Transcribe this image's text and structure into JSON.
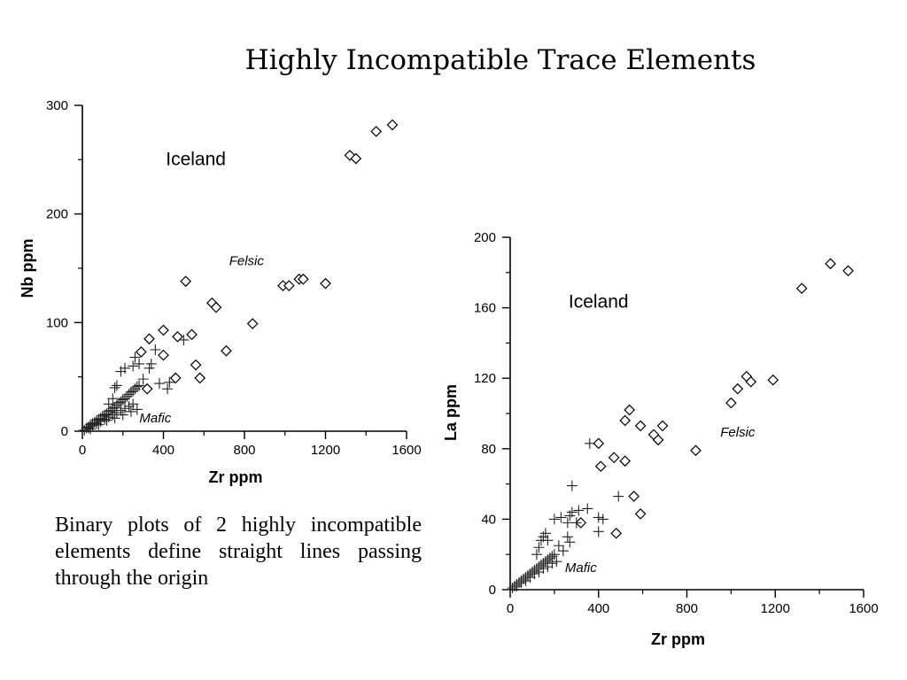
{
  "slide": {
    "title": "Highly Incompatible Trace Elements",
    "caption": "Binary plots of 2 highly incompatible elements define straight lines passing through the origin"
  },
  "chart_data": [
    {
      "type": "scatter",
      "xlabel": "Zr ppm",
      "ylabel": "Nb ppm",
      "xlim": [
        0,
        1600
      ],
      "ylim": [
        0,
        300
      ],
      "xticks": [
        0,
        400,
        800,
        1200,
        1600
      ],
      "yticks": [
        0,
        100,
        200,
        300
      ],
      "annotations": [
        {
          "text": "Iceland",
          "at": [
            560,
            245
          ],
          "style": "region"
        },
        {
          "text": "Felsic",
          "at": [
            810,
            153
          ],
          "style": "group-label"
        },
        {
          "text": "Mafic",
          "at": [
            360,
            8
          ],
          "style": "group-label"
        }
      ],
      "series": [
        {
          "marker": "diamond",
          "points": [
            [
              1320,
              254
            ],
            [
              1350,
              251
            ],
            [
              1450,
              276
            ],
            [
              1530,
              282
            ],
            [
              510,
              138
            ],
            [
              640,
              118
            ],
            [
              660,
              114
            ],
            [
              990,
              134
            ],
            [
              1020,
              134
            ],
            [
              1070,
              140
            ],
            [
              1090,
              140
            ],
            [
              1200,
              136
            ],
            [
              840,
              99
            ],
            [
              290,
              73
            ],
            [
              330,
              85
            ],
            [
              400,
              93
            ],
            [
              470,
              87
            ],
            [
              540,
              89
            ],
            [
              400,
              70
            ],
            [
              560,
              61
            ],
            [
              710,
              74
            ],
            [
              460,
              49
            ],
            [
              580,
              49
            ],
            [
              320,
              39
            ]
          ]
        },
        {
          "marker": "plus",
          "points": [
            [
              10,
              1
            ],
            [
              20,
              3
            ],
            [
              30,
              4
            ],
            [
              40,
              6
            ],
            [
              50,
              7
            ],
            [
              60,
              8
            ],
            [
              70,
              10
            ],
            [
              80,
              11
            ],
            [
              90,
              12
            ],
            [
              100,
              14
            ],
            [
              110,
              15
            ],
            [
              120,
              16
            ],
            [
              130,
              18
            ],
            [
              140,
              19
            ],
            [
              150,
              21
            ],
            [
              160,
              22
            ],
            [
              170,
              24
            ],
            [
              180,
              26
            ],
            [
              190,
              27
            ],
            [
              200,
              29
            ],
            [
              210,
              30
            ],
            [
              220,
              32
            ],
            [
              230,
              34
            ],
            [
              240,
              36
            ],
            [
              250,
              37
            ],
            [
              260,
              39
            ],
            [
              270,
              41
            ],
            [
              280,
              42
            ],
            [
              30,
              3
            ],
            [
              50,
              5
            ],
            [
              70,
              7
            ],
            [
              90,
              9
            ],
            [
              110,
              11
            ],
            [
              130,
              13
            ],
            [
              150,
              15
            ],
            [
              170,
              17
            ],
            [
              190,
              19
            ],
            [
              210,
              21
            ],
            [
              230,
              23
            ],
            [
              250,
              25
            ],
            [
              40,
              2
            ],
            [
              80,
              6
            ],
            [
              120,
              10
            ],
            [
              160,
              12
            ],
            [
              200,
              15
            ],
            [
              240,
              18
            ],
            [
              270,
              20
            ],
            [
              130,
              25
            ],
            [
              150,
              30
            ],
            [
              160,
              40
            ],
            [
              170,
              42
            ],
            [
              190,
              55
            ],
            [
              210,
              58
            ],
            [
              250,
              60
            ],
            [
              280,
              62
            ],
            [
              300,
              48
            ],
            [
              330,
              58
            ],
            [
              340,
              62
            ],
            [
              360,
              75
            ],
            [
              380,
              44
            ],
            [
              420,
              39
            ],
            [
              430,
              45
            ],
            [
              500,
              84
            ],
            [
              260,
              68
            ]
          ]
        }
      ]
    },
    {
      "type": "scatter",
      "xlabel": "Zr ppm",
      "ylabel": "La ppm",
      "xlim": [
        0,
        1600
      ],
      "ylim": [
        0,
        200
      ],
      "xticks": [
        0,
        400,
        800,
        1200,
        1600
      ],
      "yticks": [
        0,
        40,
        80,
        120,
        160,
        200
      ],
      "annotations": [
        {
          "text": "Iceland",
          "at": [
            400,
            160
          ],
          "style": "region"
        },
        {
          "text": "Felsic",
          "at": [
            1030,
            87
          ],
          "style": "group-label"
        },
        {
          "text": "Mafic",
          "at": [
            320,
            10
          ],
          "style": "group-label"
        }
      ],
      "series": [
        {
          "marker": "diamond",
          "points": [
            [
              1450,
              185
            ],
            [
              1530,
              181
            ],
            [
              1320,
              171
            ],
            [
              1070,
              121
            ],
            [
              1090,
              118
            ],
            [
              1190,
              119
            ],
            [
              1030,
              114
            ],
            [
              1000,
              106
            ],
            [
              840,
              79
            ],
            [
              540,
              102
            ],
            [
              520,
              96
            ],
            [
              590,
              93
            ],
            [
              690,
              93
            ],
            [
              650,
              88
            ],
            [
              670,
              85
            ],
            [
              400,
              83
            ],
            [
              410,
              70
            ],
            [
              470,
              75
            ],
            [
              520,
              73
            ],
            [
              560,
              53
            ],
            [
              590,
              43
            ],
            [
              480,
              32
            ],
            [
              320,
              38
            ]
          ]
        },
        {
          "marker": "plus",
          "points": [
            [
              10,
              1
            ],
            [
              20,
              2
            ],
            [
              30,
              3
            ],
            [
              40,
              4
            ],
            [
              50,
              5
            ],
            [
              60,
              6
            ],
            [
              70,
              7
            ],
            [
              80,
              8
            ],
            [
              90,
              9
            ],
            [
              100,
              10
            ],
            [
              110,
              11
            ],
            [
              120,
              12
            ],
            [
              130,
              13
            ],
            [
              140,
              14
            ],
            [
              150,
              15
            ],
            [
              160,
              16
            ],
            [
              170,
              17
            ],
            [
              180,
              18
            ],
            [
              190,
              19
            ],
            [
              200,
              20
            ],
            [
              30,
              2
            ],
            [
              50,
              4
            ],
            [
              70,
              5
            ],
            [
              90,
              7
            ],
            [
              110,
              9
            ],
            [
              130,
              10
            ],
            [
              150,
              12
            ],
            [
              170,
              13
            ],
            [
              190,
              15
            ],
            [
              210,
              16
            ],
            [
              120,
              20
            ],
            [
              130,
              24
            ],
            [
              140,
              28
            ],
            [
              150,
              30
            ],
            [
              160,
              32
            ],
            [
              170,
              28
            ],
            [
              200,
              40
            ],
            [
              230,
              41
            ],
            [
              260,
              38
            ],
            [
              270,
              42
            ],
            [
              280,
              44
            ],
            [
              280,
              59
            ],
            [
              300,
              38
            ],
            [
              310,
              45
            ],
            [
              350,
              46
            ],
            [
              360,
              83
            ],
            [
              400,
              41
            ],
            [
              400,
              33
            ],
            [
              420,
              40
            ],
            [
              490,
              53
            ],
            [
              260,
              30
            ],
            [
              270,
              27
            ],
            [
              220,
              25
            ],
            [
              240,
              22
            ]
          ]
        }
      ]
    }
  ]
}
